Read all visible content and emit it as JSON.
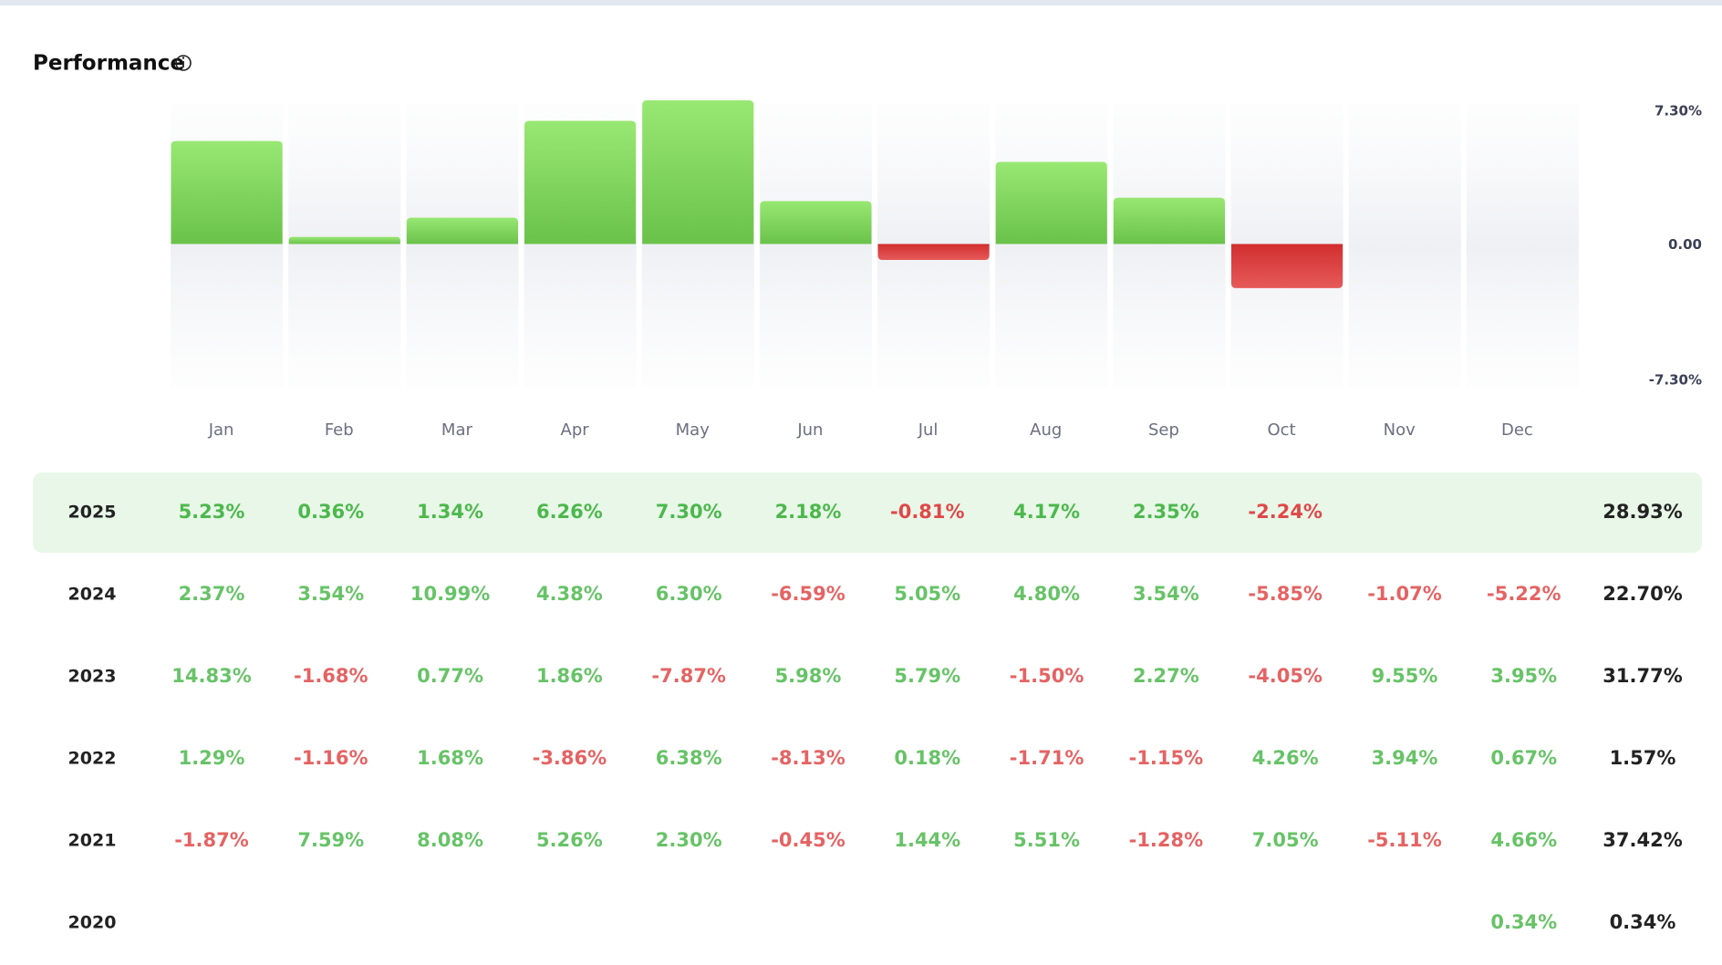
{
  "chart_data": {
    "type": "bar",
    "title": "Performance",
    "categories": [
      "Jan",
      "Feb",
      "Mar",
      "Apr",
      "May",
      "Jun",
      "Jul",
      "Aug",
      "Sep",
      "Oct",
      "Nov",
      "Dec"
    ],
    "values": [
      5.23,
      0.36,
      1.34,
      6.26,
      7.3,
      2.18,
      -0.81,
      4.17,
      2.35,
      -2.24,
      null,
      null
    ],
    "positive_color": "#7fd65c",
    "negative_color": "#db3b3b",
    "ylim": [
      -7.3,
      7.3
    ],
    "yticks": [
      {
        "value": 7.3,
        "label": "7.30%"
      },
      {
        "value": 0,
        "label": "0.00"
      },
      {
        "value": -7.3,
        "label": "-7.30%"
      }
    ]
  },
  "table": {
    "positive_color": "#4cb84c",
    "negative_color": "#e04848",
    "rows": [
      [
        "2025",
        "5.23%",
        "0.36%",
        "1.34%",
        "6.26%",
        "7.30%",
        "2.18%",
        "-0.81%",
        "4.17%",
        "2.35%",
        "-2.24%",
        null,
        null,
        "28.93%"
      ],
      [
        "2024",
        "2.37%",
        "3.54%",
        "10.99%",
        "4.38%",
        "6.30%",
        "-6.59%",
        "5.05%",
        "4.80%",
        "3.54%",
        "-5.85%",
        "-1.07%",
        "-5.22%",
        "22.70%"
      ],
      [
        "2023",
        "14.83%",
        "-1.68%",
        "0.77%",
        "1.86%",
        "-7.87%",
        "5.98%",
        "5.79%",
        "-1.50%",
        "2.27%",
        "-4.05%",
        "9.55%",
        "3.95%",
        "31.77%"
      ],
      [
        "2022",
        "1.29%",
        "-1.16%",
        "1.68%",
        "-3.86%",
        "6.38%",
        "-8.13%",
        "0.18%",
        "-1.71%",
        "-1.15%",
        "4.26%",
        "3.94%",
        "0.67%",
        "1.57%"
      ],
      [
        "2021",
        "-1.87%",
        "7.59%",
        "8.08%",
        "5.26%",
        "2.30%",
        "-0.45%",
        "1.44%",
        "5.51%",
        "-1.28%",
        "7.05%",
        "-5.11%",
        "4.66%",
        "37.42%"
      ],
      [
        "2020",
        null,
        null,
        null,
        null,
        null,
        null,
        null,
        null,
        null,
        null,
        null,
        "0.34%",
        "0.34%"
      ]
    ]
  }
}
